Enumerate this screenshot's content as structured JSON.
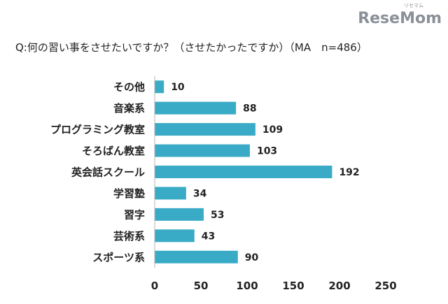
{
  "brand": {
    "logo": "ReseMom",
    "logo_ruby": "リセマム",
    "color": "#8a9099"
  },
  "chart_data": {
    "type": "bar",
    "orientation": "horizontal",
    "title": "Q:何の習い事をさせたいですか？（させたかったですか）（MA　n=486）",
    "categories": [
      "その他",
      "音楽系",
      "プログラミング教室",
      "そろばん教室",
      "英会話スクール",
      "学習塾",
      "習字",
      "芸術系",
      "スポーツ系"
    ],
    "values": [
      10,
      88,
      109,
      103,
      192,
      34,
      53,
      43,
      90
    ],
    "xlim": [
      0,
      250
    ],
    "xticks": [
      0,
      50,
      100,
      150,
      200,
      250
    ],
    "xlabel": "",
    "ylabel": "",
    "grid": false,
    "bar_color": "#3aabc6",
    "axis_color": "#b5b5b5"
  }
}
